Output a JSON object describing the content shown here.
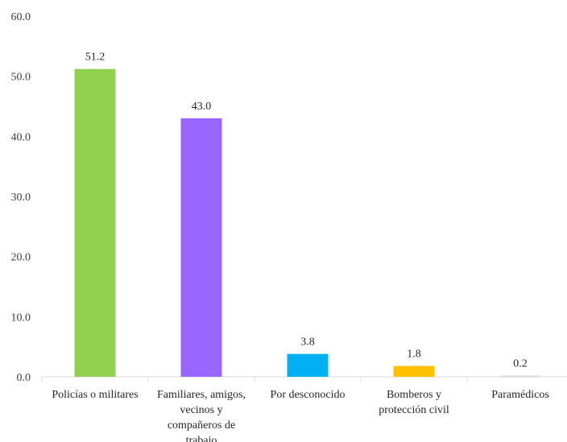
{
  "chart_data": {
    "type": "bar",
    "categories": [
      [
        "Policías o militares"
      ],
      [
        "Familiares, amigos,",
        "vecinos y",
        "compañeros de",
        "trabajo"
      ],
      [
        "Por desconocido"
      ],
      [
        "Bomberos y",
        "protección civil"
      ],
      [
        "Paramédicos"
      ]
    ],
    "values": [
      51.2,
      43.0,
      3.8,
      1.8,
      0.2
    ],
    "value_labels": [
      "51.2",
      "43.0",
      "3.8",
      "1.8",
      "0.2"
    ],
    "bar_colors": [
      "#92d050",
      "#9966ff",
      "#00b0f0",
      "#ffc000",
      "#d9d9d9"
    ],
    "ylim": [
      0,
      60
    ],
    "yticks": [
      0,
      10,
      20,
      30,
      40,
      50,
      60
    ],
    "ytick_labels": [
      "0.0",
      "10.0",
      "20.0",
      "30.0",
      "40.0",
      "50.0",
      "60.0"
    ],
    "title": "",
    "xlabel": "",
    "ylabel": "",
    "grid": false,
    "legend": "none"
  }
}
